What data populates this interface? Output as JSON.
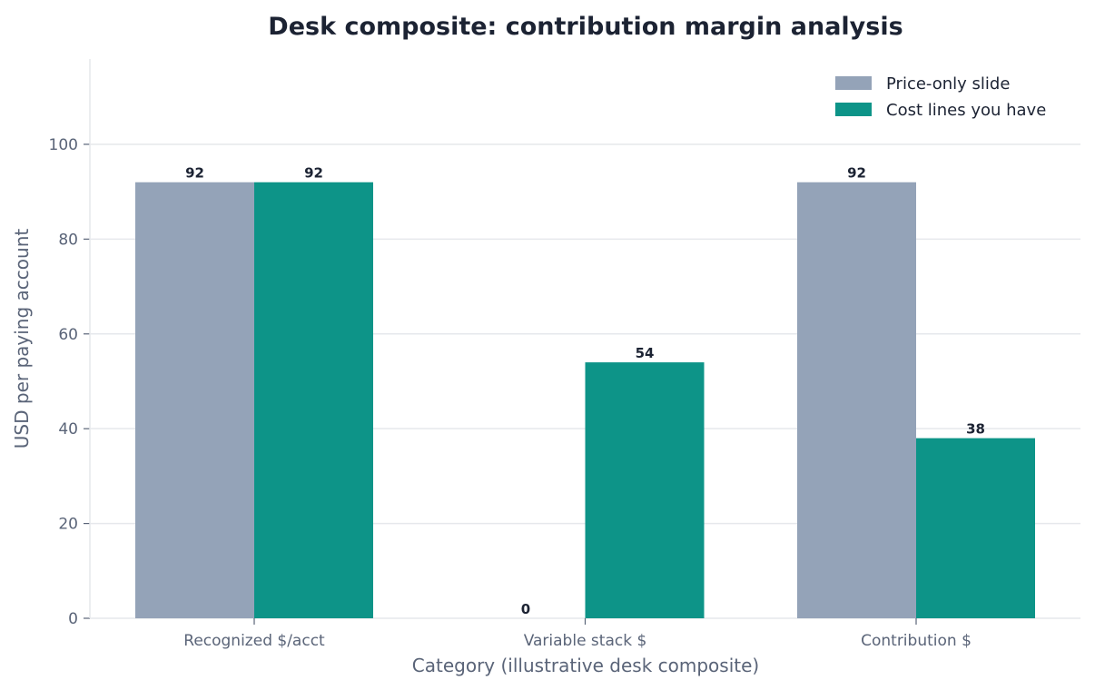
{
  "chart_data": {
    "type": "bar",
    "title": "Desk composite: contribution margin analysis",
    "xlabel": "Category (illustrative desk composite)",
    "ylabel": "USD per paying account",
    "categories": [
      "Recognized $/acct",
      "Variable stack $",
      "Contribution $"
    ],
    "series": [
      {
        "name": "Price-only slide",
        "values": [
          92,
          0,
          92
        ],
        "color": "#94a3b8"
      },
      {
        "name": "Cost lines you have",
        "values": [
          92,
          54,
          38
        ],
        "color": "#0d9488"
      }
    ],
    "ylim": [
      0,
      118
    ],
    "yticks": [
      0,
      20,
      40,
      60,
      80,
      100
    ],
    "grid": true,
    "legend_position": "top-right"
  }
}
